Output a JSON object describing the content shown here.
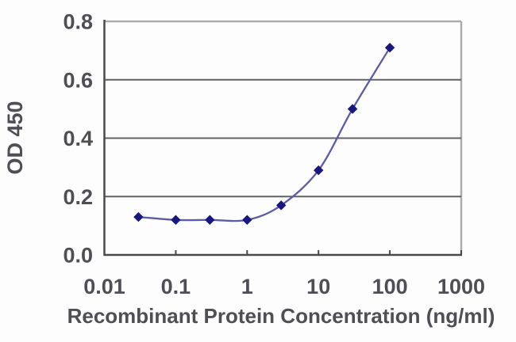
{
  "chart_data": {
    "type": "line",
    "title": "",
    "xlabel": "Recombinant Protein Concentration (ng/ml)",
    "ylabel": "OD 450",
    "x_scale": "log",
    "x": [
      0.03,
      0.1,
      0.3,
      1,
      3,
      10,
      30,
      100
    ],
    "y": [
      0.13,
      0.12,
      0.12,
      0.12,
      0.17,
      0.29,
      0.5,
      0.71
    ],
    "xlim": [
      0.01,
      1000
    ],
    "ylim": [
      0.0,
      0.8
    ],
    "x_ticks": [
      0.01,
      0.1,
      1,
      10,
      100,
      1000
    ],
    "x_tick_labels": [
      "0.01",
      "0.1",
      "1",
      "10",
      "100",
      "1000"
    ],
    "y_ticks": [
      0.0,
      0.2,
      0.4,
      0.6,
      0.8
    ],
    "y_tick_labels": [
      "0.0",
      "0.2",
      "0.4",
      "0.6",
      "0.8"
    ],
    "grid": "horizontal",
    "legend": "none",
    "marker": "diamond",
    "line_style": "smooth",
    "colors": {
      "line": "#5c5ca6",
      "marker": "#17177f",
      "gridline": "#626265",
      "axis": "#4a4a4c",
      "border": "#acacae",
      "text": "#4f4e55",
      "background": "#fdfdfd"
    }
  }
}
